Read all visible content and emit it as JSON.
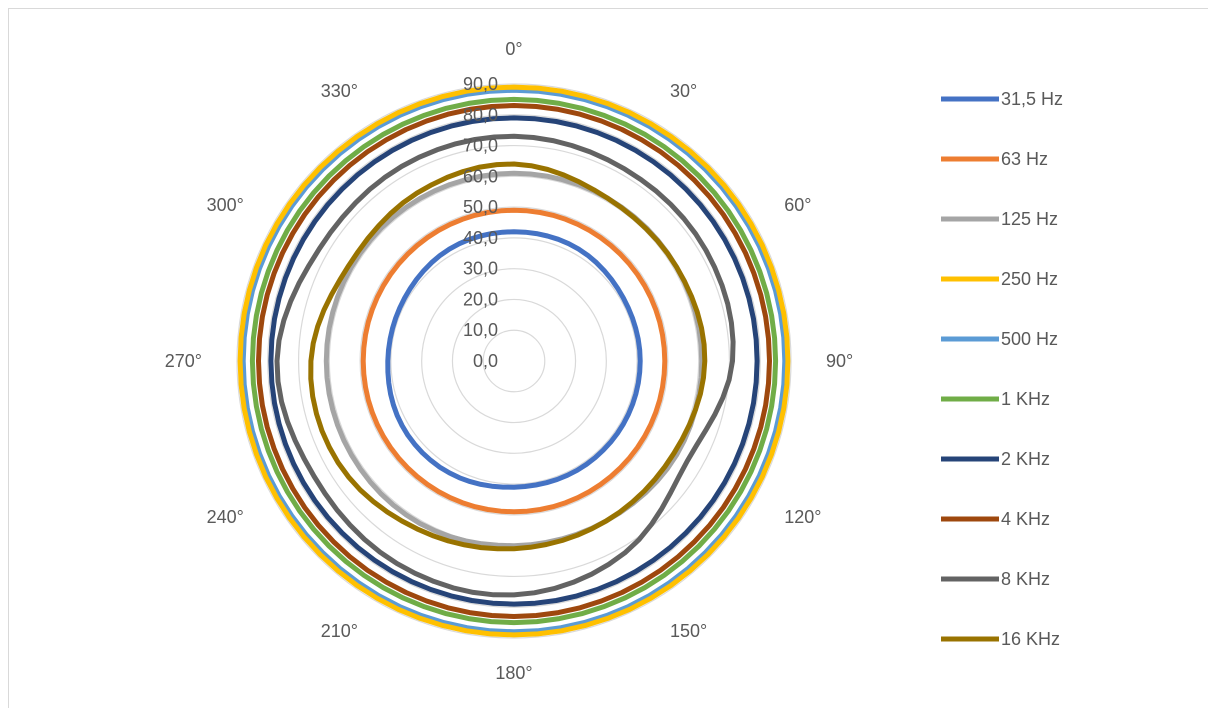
{
  "chart_data": {
    "type": "radar",
    "angle_labels": [
      "0°",
      "30°",
      "60°",
      "90°",
      "120°",
      "150°",
      "180°",
      "210°",
      "240°",
      "270°",
      "300°",
      "330°"
    ],
    "r_ticks": [
      "0,0",
      "10,0",
      "20,0",
      "30,0",
      "40,0",
      "50,0",
      "60,0",
      "70,0",
      "80,0",
      "90,0"
    ],
    "rlim": [
      0,
      90
    ],
    "grid": true,
    "legend_position": "right",
    "angles": [
      0,
      30,
      60,
      90,
      120,
      150,
      180,
      210,
      240,
      270,
      300,
      330
    ],
    "series": [
      {
        "name": "31,5 Hz",
        "color": "#4472C4",
        "values": [
          42,
          42,
          41,
          41,
          41,
          41,
          41,
          42,
          42,
          41,
          41,
          42
        ]
      },
      {
        "name": "63 Hz",
        "color": "#ED7D31",
        "values": [
          49,
          49,
          49,
          49,
          49,
          49,
          49,
          49,
          49,
          49,
          49,
          49
        ]
      },
      {
        "name": "125 Hz",
        "color": "#A5A5A5",
        "values": [
          61,
          61,
          61,
          61,
          61,
          60,
          60,
          61,
          61,
          61,
          61,
          61
        ]
      },
      {
        "name": "250 Hz",
        "color": "#FFC000",
        "values": [
          89,
          89,
          89,
          89,
          89,
          89,
          89,
          89,
          89,
          89,
          89,
          89
        ]
      },
      {
        "name": "500 Hz",
        "color": "#5B9BD5",
        "values": [
          88,
          88,
          88,
          88,
          88,
          88,
          88,
          88,
          88,
          88,
          88,
          88
        ]
      },
      {
        "name": "1 KHz",
        "color": "#70AD47",
        "values": [
          85,
          85,
          85,
          85,
          85,
          85,
          85,
          85,
          85,
          85,
          85,
          85
        ]
      },
      {
        "name": "2  KHz",
        "color": "#264478",
        "values": [
          79,
          79,
          79,
          79,
          79,
          79,
          79,
          79,
          79,
          79,
          79,
          79
        ]
      },
      {
        "name": "4 KHz",
        "color": "#9E480E",
        "values": [
          83,
          83,
          83,
          83,
          83,
          83,
          83,
          83,
          83,
          83,
          83,
          83
        ]
      },
      {
        "name": "8 KHz",
        "color": "#636363",
        "values": [
          73,
          72,
          72,
          71,
          65,
          72,
          76,
          76,
          75,
          77,
          73,
          73
        ]
      },
      {
        "name": "16 KHz",
        "color": "#997300",
        "values": [
          64,
          61,
          61,
          62,
          60,
          60,
          61,
          63,
          66,
          66,
          62,
          63
        ]
      }
    ]
  }
}
